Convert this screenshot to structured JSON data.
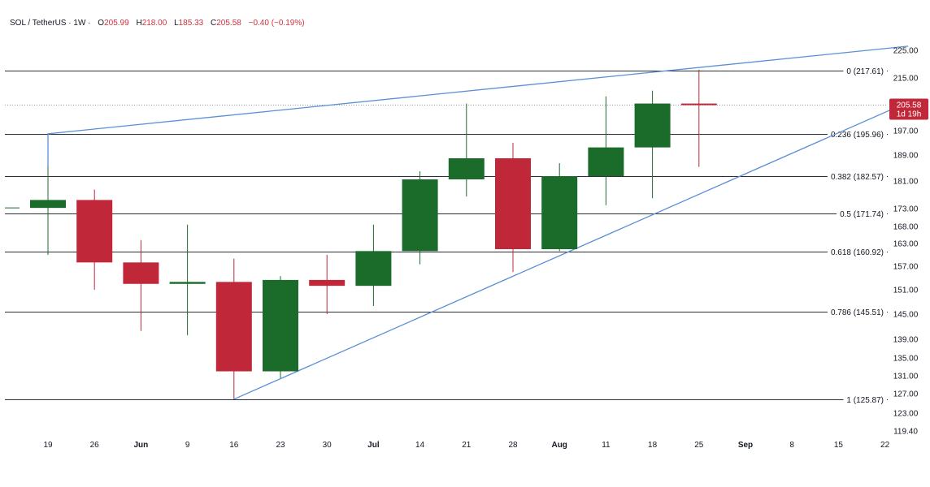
{
  "header": {
    "symbol": "SOL / TetherUS",
    "separator": "·",
    "interval": "1W",
    "dot": "·",
    "open_label": "O",
    "open": "205.99",
    "high_label": "H",
    "high": "218.00",
    "low_label": "L",
    "low": "185.33",
    "close_label": "C",
    "close": "205.58",
    "change": "−0.40 (−0.19%)"
  },
  "price_badge": {
    "price": "205.58",
    "countdown": "1d 19h"
  },
  "colors": {
    "up": "#1b6b2a",
    "down": "#c0283a",
    "trendline": "#5b8fd6",
    "fib_line": "#2a2e39",
    "badge": "#c0283a"
  },
  "chart_data": {
    "type": "candlestick",
    "y_tick_labels": [
      "225.00",
      "215.00",
      "205.58",
      "197.00",
      "189.00",
      "181.00",
      "173.00",
      "168.00",
      "163.00",
      "157.00",
      "151.00",
      "145.00",
      "139.00",
      "135.00",
      "131.00",
      "127.00",
      "123.00",
      "119.40"
    ],
    "x_tick_labels": [
      "19",
      "26",
      "Jun",
      "9",
      "16",
      "23",
      "30",
      "Jul",
      "14",
      "21",
      "28",
      "Aug",
      "11",
      "18",
      "25",
      "Sep",
      "8",
      "15",
      "22"
    ],
    "candles": [
      {
        "date": "May 19",
        "open": 173.2,
        "high": 185.5,
        "low": 160.0,
        "close": 175.5
      },
      {
        "date": "May 26",
        "open": 175.5,
        "high": 178.5,
        "low": 151.0,
        "close": 158.0
      },
      {
        "date": "Jun 2",
        "open": 158.0,
        "high": 164.0,
        "low": 141.0,
        "close": 152.5
      },
      {
        "date": "Jun 9",
        "open": 152.5,
        "high": 168.5,
        "low": 140.0,
        "close": 153.0
      },
      {
        "date": "Jun 16",
        "open": 153.0,
        "high": 159.0,
        "low": 125.87,
        "close": 132.0
      },
      {
        "date": "Jun 23",
        "open": 132.0,
        "high": 154.5,
        "low": 130.5,
        "close": 153.5
      },
      {
        "date": "Jun 30",
        "open": 153.5,
        "high": 160.0,
        "low": 145.0,
        "close": 152.0
      },
      {
        "date": "Jul 7",
        "open": 152.0,
        "high": 168.5,
        "low": 147.0,
        "close": 161.0
      },
      {
        "date": "Jul 14",
        "open": 161.0,
        "high": 184.0,
        "low": 157.5,
        "close": 181.5
      },
      {
        "date": "Jul 21",
        "open": 181.5,
        "high": 206.0,
        "low": 176.5,
        "close": 188.0
      },
      {
        "date": "Jul 28",
        "open": 188.0,
        "high": 193.0,
        "low": 155.5,
        "close": 161.5
      },
      {
        "date": "Aug 4",
        "open": 161.5,
        "high": 186.5,
        "low": 161.0,
        "close": 182.5
      },
      {
        "date": "Aug 11",
        "open": 182.5,
        "high": 208.5,
        "low": 174.0,
        "close": 191.5
      },
      {
        "date": "Aug 18",
        "open": 191.5,
        "high": 210.5,
        "low": 176.0,
        "close": 205.99
      },
      {
        "date": "Aug 25",
        "open": 205.99,
        "high": 218.0,
        "low": 185.33,
        "close": 205.58
      }
    ],
    "fib_levels": [
      {
        "ratio": "0",
        "price": 217.61,
        "label": "0 (217.61)"
      },
      {
        "ratio": "0.236",
        "price": 195.96,
        "label": "0.236 (195.96)"
      },
      {
        "ratio": "0.382",
        "price": 182.57,
        "label": "0.382 (182.57)"
      },
      {
        "ratio": "0.5",
        "price": 171.74,
        "label": "0.5 (171.74)"
      },
      {
        "ratio": "0.618",
        "price": 160.92,
        "label": "0.618 (160.92)"
      },
      {
        "ratio": "0.786",
        "price": 145.51,
        "label": "0.786 (145.51)"
      },
      {
        "ratio": "1",
        "price": 125.87,
        "label": "1 (125.87)"
      }
    ],
    "last_price": 205.58,
    "trendlines": [
      {
        "name": "upper",
        "points": [
          {
            "week": 0,
            "price": 185.5
          },
          {
            "week": 0,
            "price": 196.0
          },
          {
            "week": 18.5,
            "price": 226.5
          }
        ]
      },
      {
        "name": "lower",
        "points": [
          {
            "week": 4,
            "price": 125.87
          },
          {
            "week": 18.5,
            "price": 206.5
          }
        ]
      }
    ],
    "grid": false,
    "legend": "top-left"
  }
}
